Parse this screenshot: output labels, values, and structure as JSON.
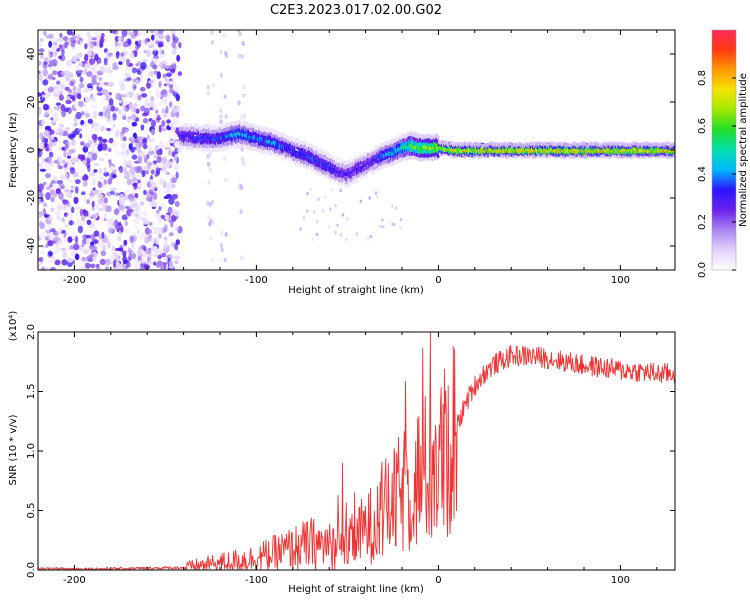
{
  "title": "C2E3.2023.017.02.00.G02",
  "colors": {
    "snr_line": "#ee3333",
    "colormap": [
      "#ffffff",
      "#e2d2fb",
      "#a984f2",
      "#6a22ea",
      "#2d14ff",
      "#00b8ff",
      "#00e0b0",
      "#1fdd2a",
      "#a0e800",
      "#f5e400",
      "#ff9a00",
      "#ff3a10",
      "#ff2a5a"
    ]
  },
  "chart_data": [
    {
      "type": "heatmap",
      "title": "C2E3.2023.017.02.00.G02",
      "xlabel": "Height of straight line (km)",
      "ylabel": "Frequency (Hz)",
      "xlim": [
        -220,
        130
      ],
      "ylim": [
        -50,
        50
      ],
      "xticks": [
        -200,
        -100,
        0,
        100
      ],
      "xtick_labels": [
        "-200",
        "-100",
        "0",
        "100"
      ],
      "yticks": [
        -40,
        -20,
        0,
        20,
        40
      ],
      "ytick_labels": [
        "-40",
        "-20",
        "0",
        "20",
        "40"
      ],
      "colorbar": {
        "label": "Normalized spectral amplitude",
        "range": [
          0.0,
          1.0
        ],
        "ticks": [
          0.0,
          0.2,
          0.4,
          0.6,
          0.8
        ],
        "tick_labels": [
          "0.0",
          "0.2",
          "0.4",
          "0.6",
          "0.8"
        ]
      },
      "noise_region_x": [
        -220,
        -142
      ],
      "ridge": {
        "x": [
          -142,
          -130,
          -120,
          -110,
          -100,
          -90,
          -80,
          -70,
          -60,
          -55,
          -50,
          -45,
          -40,
          -35,
          -30,
          -25,
          -20,
          -15,
          -10,
          0,
          10,
          20,
          40,
          60,
          80,
          100,
          130
        ],
        "y": [
          6,
          5,
          5,
          7,
          5,
          3,
          0,
          -3,
          -7,
          -9,
          -10,
          -8,
          -6,
          -4,
          -2,
          -1,
          1,
          2,
          1,
          1,
          0,
          0,
          0,
          0,
          0,
          0,
          0
        ],
        "amplitude": [
          0.3,
          0.35,
          0.35,
          0.45,
          0.4,
          0.4,
          0.35,
          0.35,
          0.35,
          0.3,
          0.3,
          0.3,
          0.3,
          0.3,
          0.4,
          0.45,
          0.5,
          0.6,
          0.65,
          0.72,
          0.78,
          0.8,
          0.8,
          0.8,
          0.8,
          0.8,
          0.8
        ]
      }
    },
    {
      "type": "line",
      "xlabel": "Height of straight line (km)",
      "ylabel": "SNR (10 * v/v)",
      "y_multiplier": "(x10⁴)",
      "xlim": [
        -220,
        130
      ],
      "ylim": [
        0.0,
        2.0
      ],
      "xticks": [
        -200,
        -100,
        0,
        100
      ],
      "xtick_labels": [
        "-200",
        "-100",
        "0",
        "100"
      ],
      "yticks": [
        0.0,
        0.5,
        1.0,
        1.5,
        2.0
      ],
      "ytick_labels": [
        "0.0",
        "0.5",
        "1.0",
        "1.5",
        "2.0"
      ],
      "series": [
        {
          "x": [
            -220,
            -200,
            -180,
            -160,
            -140,
            -130,
            -120,
            -110,
            -100,
            -90,
            -80,
            -70,
            -60,
            -50,
            -40,
            -35,
            -30,
            -25,
            -20,
            -15,
            -10,
            -5,
            0,
            5,
            10,
            15,
            20,
            25,
            30,
            40,
            50,
            60,
            70,
            80,
            90,
            100,
            110,
            120,
            130
          ],
          "values": [
            0.01,
            0.01,
            0.01,
            0.015,
            0.02,
            0.04,
            0.06,
            0.08,
            0.1,
            0.14,
            0.18,
            0.22,
            0.2,
            0.2,
            0.35,
            0.4,
            0.5,
            0.55,
            0.65,
            0.7,
            0.8,
            0.85,
            0.9,
            1.0,
            1.2,
            1.4,
            1.55,
            1.65,
            1.72,
            1.8,
            1.8,
            1.78,
            1.75,
            1.72,
            1.7,
            1.68,
            1.67,
            1.65,
            1.65
          ]
        }
      ]
    }
  ]
}
